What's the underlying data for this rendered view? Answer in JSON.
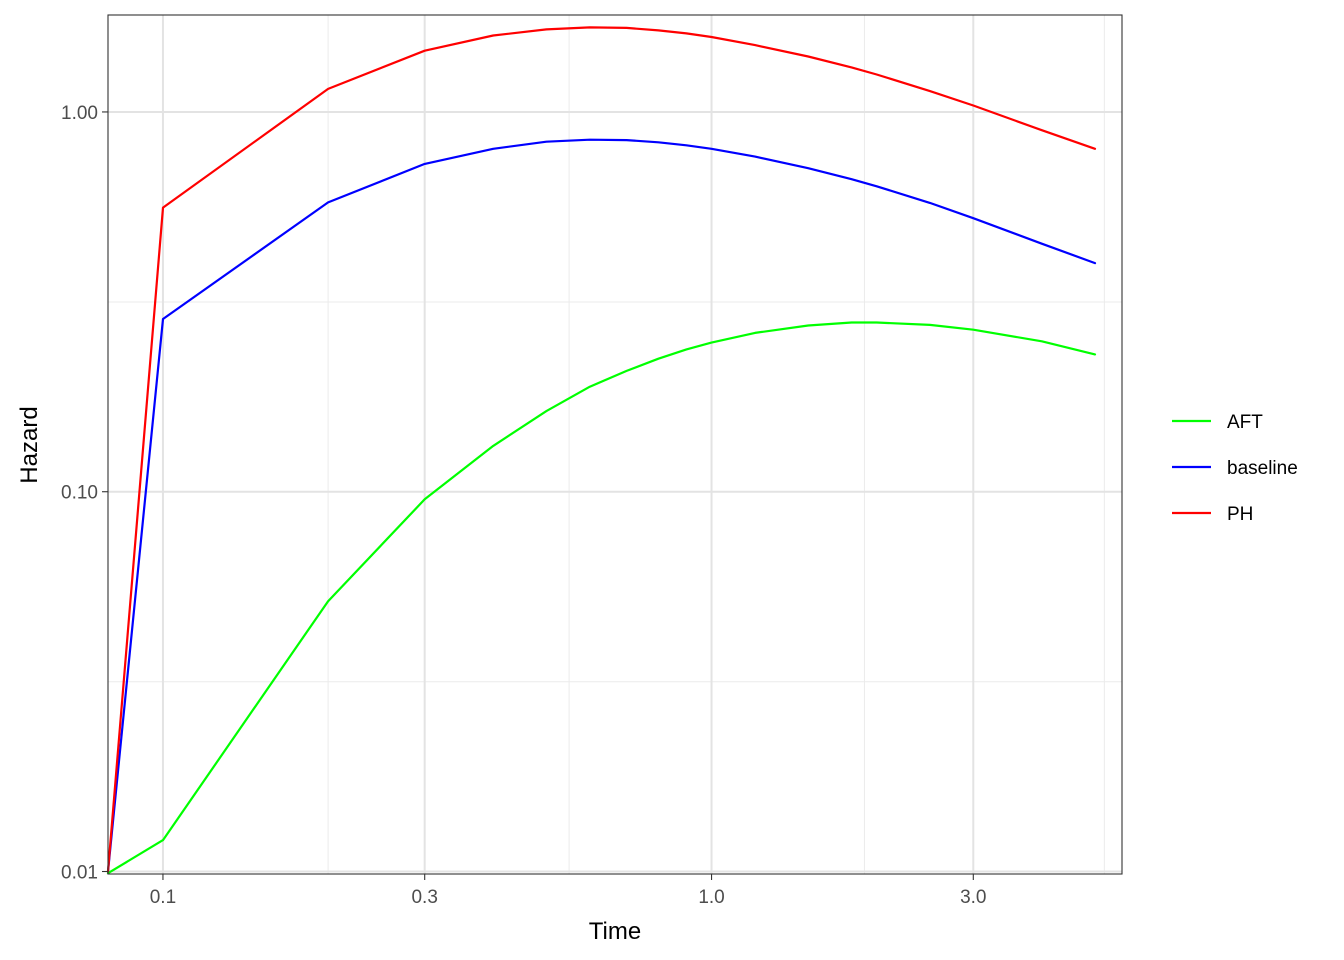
{
  "chart_data": {
    "type": "line",
    "title": "",
    "xlabel": "Time",
    "ylabel": "Hazard",
    "x_scale": "log10",
    "y_scale": "log10",
    "xlim": [
      0.0794,
      5.6
    ],
    "ylim": [
      0.00985,
      1.8
    ],
    "x_ticks": [
      {
        "value": 0.1,
        "label": "0.1"
      },
      {
        "value": 0.3,
        "label": "0.3"
      },
      {
        "value": 1.0,
        "label": "1.0"
      },
      {
        "value": 3.0,
        "label": "3.0"
      }
    ],
    "x_minor_ticks": [
      0.2,
      0.55,
      1.9,
      5.2
    ],
    "y_ticks": [
      {
        "value": 0.01,
        "label": "0.01"
      },
      {
        "value": 0.1,
        "label": "0.10"
      },
      {
        "value": 1.0,
        "label": "1.00"
      }
    ],
    "y_minor_ticks": [
      0.0316,
      0.316
    ],
    "grid": true,
    "legend_position": "right",
    "series": [
      {
        "name": "AFT",
        "color": "#00ff00",
        "x": [
          0.0794,
          0.1,
          0.2,
          0.3,
          0.4,
          0.5,
          0.6,
          0.7,
          0.8,
          0.9,
          1.0,
          1.2,
          1.5,
          1.8,
          2.0,
          2.5,
          3.0,
          4.0,
          5.0
        ],
        "y": [
          0.0099,
          0.0121,
          0.0515,
          0.0955,
          0.132,
          0.163,
          0.189,
          0.208,
          0.224,
          0.237,
          0.247,
          0.262,
          0.274,
          0.279,
          0.279,
          0.275,
          0.267,
          0.249,
          0.23
        ]
      },
      {
        "name": "baseline",
        "color": "#0000ff",
        "x": [
          0.0794,
          0.1,
          0.2,
          0.3,
          0.4,
          0.5,
          0.6,
          0.7,
          0.8,
          0.9,
          1.0,
          1.2,
          1.5,
          1.8,
          2.0,
          2.5,
          3.0,
          4.0,
          5.0
        ],
        "y": [
          0.01,
          0.285,
          0.578,
          0.73,
          0.8,
          0.835,
          0.845,
          0.843,
          0.832,
          0.817,
          0.8,
          0.763,
          0.711,
          0.665,
          0.637,
          0.576,
          0.525,
          0.45,
          0.4
        ]
      },
      {
        "name": "PH",
        "color": "#ff0000",
        "x": [
          0.0794,
          0.1,
          0.2,
          0.3,
          0.4,
          0.5,
          0.6,
          0.7,
          0.8,
          0.9,
          1.0,
          1.2,
          1.5,
          1.8,
          2.0,
          2.5,
          3.0,
          4.0,
          5.0
        ],
        "y": [
          0.01,
          0.56,
          1.15,
          1.45,
          1.59,
          1.65,
          1.67,
          1.665,
          1.64,
          1.61,
          1.575,
          1.5,
          1.4,
          1.31,
          1.255,
          1.135,
          1.04,
          0.895,
          0.8
        ]
      }
    ]
  }
}
